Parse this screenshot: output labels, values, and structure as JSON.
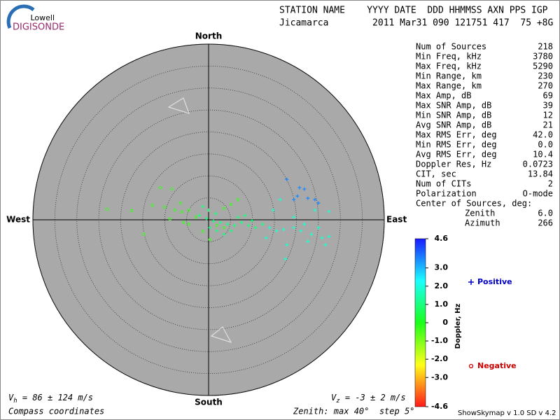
{
  "logo": {
    "small": "Lowell",
    "big": "DIGISONDE"
  },
  "header": {
    "line1": "STATION NAME    YYYY DATE  DDD HHMMSS AXN PPS IGP",
    "line2": "Jicamarca        2011 Mar31 090 121751 417  75 +8G"
  },
  "stats": [
    [
      "Num of Sources",
      218
    ],
    [
      "Min Freq, kHz",
      3780
    ],
    [
      "Max Freq, kHz",
      5290
    ],
    [
      "Min Range, km",
      230
    ],
    [
      "Max Range, km",
      270
    ],
    [
      "Max Amp, dB",
      69
    ],
    [
      "Max SNR Amp, dB",
      39
    ],
    [
      "Min SNR Amp, dB",
      12
    ],
    [
      "Avg SNR Amp, dB",
      21
    ],
    [
      "Max RMS Err, deg",
      "42.0"
    ],
    [
      "Min RMS Err, deg",
      "0.0"
    ],
    [
      "Avg RMS Err, deg",
      10.4
    ],
    [
      "Doppler Res, Hz",
      0.0723
    ],
    [
      "CIT, sec",
      13.84
    ],
    [
      "Num of CITs",
      2
    ],
    [
      "Polarization",
      "O-mode"
    ]
  ],
  "center": {
    "label": "Center of Sources, deg:",
    "rows": [
      [
        "Zenith",
        "6.0"
      ],
      [
        "Azimuth",
        266
      ]
    ]
  },
  "footer": {
    "vh": {
      "symbol": "V",
      "sub": "h",
      "text": " = 86 ± 124 m/s"
    },
    "vz": {
      "symbol": "V",
      "sub": "z",
      "text": " = -3 ± 2 m/s"
    },
    "coords": "Compass coordinates",
    "zenith": "Zenith: max 40°  step 5°",
    "version": "ShowSkymap v 1.0  SD v 4.2"
  },
  "chart_data": {
    "type": "skymap",
    "directions": {
      "north": "North",
      "south": "South",
      "east": "East",
      "west": "West"
    },
    "rlim": [
      0,
      40
    ],
    "rticks": [
      5,
      10,
      15,
      20,
      25,
      30,
      35,
      40
    ],
    "colorbar": {
      "title": "Doppler, Hz",
      "lim": [
        -4.6,
        4.6
      ],
      "ticks": [
        4.6,
        {
          "value": 3,
          "label": "3.0"
        },
        {
          "value": 2,
          "label": "2.0"
        },
        {
          "value": 1,
          "label": "1.0"
        },
        0,
        {
          "value": -1,
          "label": "-1.0"
        },
        {
          "value": -2,
          "label": "-2.0"
        },
        {
          "value": -3,
          "label": "-3.0"
        },
        -4.6
      ]
    },
    "series": [
      {
        "name": "Positive",
        "color": "#0000cc",
        "marker": "plus",
        "x": [
          -2.1,
          -0.5,
          1.1,
          2.7,
          4.3,
          5.9,
          7.5,
          9.1,
          10.7,
          0.3,
          1.9,
          3.5,
          5.1,
          -1.3,
          0.0,
          1.6,
          6.7,
          8.3,
          9.9,
          12.3,
          13.9,
          15.5,
          17.1,
          19.4,
          21.0,
          23.4,
          25.8,
          26.6,
          27.4,
          25.0,
          22.6,
          17.8,
          13.1,
          17.5,
          16.3,
          19.4,
          21.8,
          24.2,
          27.4,
          14.7,
          17.8,
          20.7,
          21.8,
          22.6,
          24.2,
          25.0,
          20.2,
          19.4
        ],
        "y": [
          1.0,
          0.3,
          -0.3,
          -0.6,
          -1.0,
          -1.3,
          -0.6,
          -1.3,
          -1.8,
          -1.8,
          -2.5,
          -3.3,
          -2.5,
          3.0,
          2.2,
          1.4,
          0.6,
          1.0,
          -0.2,
          -1.0,
          -1.8,
          -2.5,
          -2.2,
          -1.8,
          -2.5,
          -3.3,
          -4.1,
          -5.7,
          -3.8,
          -1.8,
          -4.9,
          -5.7,
          -4.1,
          -8.9,
          4.6,
          0.6,
          -1.0,
          2.2,
          1.9,
          2.2,
          9.2,
          7.3,
          7.0,
          4.9,
          4.6,
          3.8,
          5.4,
          4.6
        ],
        "doppler": [
          1.0,
          1.0,
          1.0,
          1.0,
          1.0,
          1.0,
          1.0,
          1.0,
          1.0,
          1.0,
          1.0,
          1.0,
          1.0,
          1.0,
          1.0,
          1.0,
          1.0,
          1.0,
          1.0,
          1.0,
          1.8,
          1.8,
          1.8,
          1.8,
          1.8,
          1.8,
          1.8,
          1.8,
          1.8,
          1.8,
          1.8,
          1.8,
          1.8,
          1.8,
          1.8,
          1.8,
          1.8,
          1.8,
          1.8,
          1.8,
          3.5,
          3.5,
          3.5,
          3.5,
          3.5,
          3.5,
          3.5,
          3.5
        ]
      },
      {
        "name": "Negative",
        "color": "#cc0000",
        "marker": "circle",
        "x": [
          -23.1,
          -17.5,
          -11.0,
          -8.4,
          -12.8,
          -10.0,
          -7.7,
          -6.4,
          -4.5,
          -8.8,
          -5.7,
          -14.8,
          -1.3,
          0.3,
          1.9,
          3.5,
          5.1,
          6.7,
          3.5,
          -4.5,
          -2.9,
          -6.1
        ],
        "y": [
          2.4,
          2.1,
          7.3,
          7.0,
          3.3,
          2.9,
          2.2,
          3.8,
          2.2,
          0.2,
          -0.6,
          -3.3,
          -2.6,
          -4.5,
          -1.3,
          2.6,
          3.5,
          4.6,
          -1.8,
          -1.0,
          0.6,
          1.8
        ],
        "doppler": [
          -0.3,
          -0.3,
          -0.3,
          -0.3,
          -0.3,
          -0.3,
          -0.3,
          -0.3,
          -0.3,
          -0.3,
          -0.3,
          -0.3,
          -0.3,
          -0.3,
          -0.3,
          -0.3,
          -0.3,
          -0.3,
          -0.3,
          -0.3,
          -0.3,
          -0.3
        ]
      }
    ]
  }
}
